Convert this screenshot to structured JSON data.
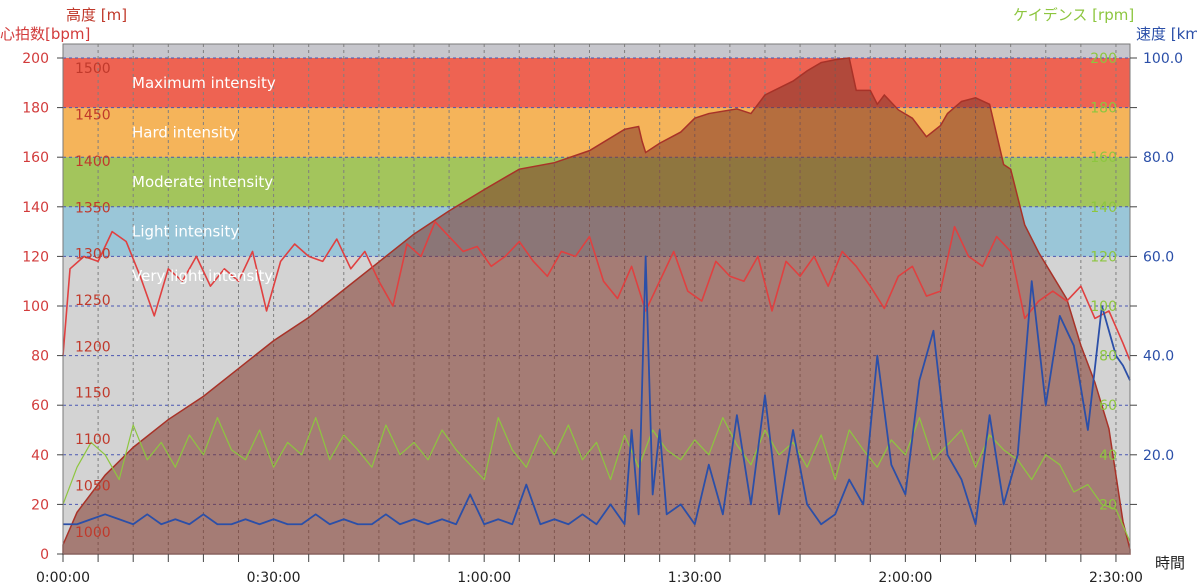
{
  "chart_data": {
    "type": "area",
    "axes": {
      "x": {
        "title": "時間",
        "min": 0,
        "max": 152,
        "unit": "minutes",
        "tick_values": [
          0,
          30,
          60,
          90,
          120,
          150
        ],
        "tick_labels": [
          "0:00:00",
          "0:30:00",
          "1:00:00",
          "1:30:00",
          "2:00:00",
          "2:30:00"
        ],
        "grid": "dotted, every 5 minutes"
      },
      "heart_rate": {
        "title": "心拍数[bpm]",
        "min": 0,
        "max": 200,
        "ticks": [
          0,
          20,
          40,
          60,
          80,
          100,
          120,
          140,
          160,
          180,
          200
        ],
        "color": "#d23b3b"
      },
      "altitude": {
        "title": "高度 [m]",
        "min": 975,
        "max": 1525,
        "ticks": [
          1000,
          1050,
          1100,
          1150,
          1200,
          1250,
          1300,
          1350,
          1400,
          1450,
          1500
        ],
        "color": "#c0392b"
      },
      "cadence": {
        "title": "ケイデンス [rpm]",
        "min": 0,
        "max": 200,
        "ticks": [
          20,
          40,
          60,
          80,
          100,
          120,
          140,
          160,
          180,
          200
        ],
        "color": "#8dc63f"
      },
      "speed": {
        "title": "速度 [km",
        "min": 0,
        "max": 100,
        "ticks": [
          20.0,
          40.0,
          60.0,
          80.0,
          100.0
        ],
        "tick_labels": [
          "20.0",
          "40.0",
          "60.0",
          "80.0",
          "100.0"
        ],
        "color": "#2b4fa8"
      }
    },
    "zones": [
      {
        "label": "Maximum intensity",
        "from": 180,
        "to": 200,
        "color": "#ee6352"
      },
      {
        "label": "Hard intensity",
        "from": 160,
        "to": 180,
        "color": "#f5b45a"
      },
      {
        "label": "Moderate intensity",
        "from": 140,
        "to": 160,
        "color": "#a3c55c"
      },
      {
        "label": "Light intensity",
        "from": 120,
        "to": 140,
        "color": "#9ac6d8"
      },
      {
        "label": "Very light intensity",
        "from": 0,
        "to": 120,
        "color": "#d3d3d3"
      }
    ],
    "series": [
      {
        "key": "altitude",
        "color": "#a83228",
        "fill": "rgba(128,52,40,0.55)",
        "x": [
          0,
          2,
          6,
          10,
          15,
          20,
          25,
          30,
          35,
          40,
          45,
          50,
          55,
          60,
          65,
          70,
          75,
          80,
          82,
          82.5,
          83,
          85,
          88,
          90,
          92,
          96,
          98,
          100,
          104,
          106,
          108,
          110,
          112,
          113,
          115,
          116,
          117,
          119,
          121,
          123,
          125,
          126,
          128,
          130,
          132,
          134,
          135,
          136,
          137,
          139,
          141,
          143,
          145,
          147,
          149,
          150,
          151,
          152
        ],
        "y": [
          985,
          1020,
          1060,
          1090,
          1120,
          1145,
          1175,
          1205,
          1230,
          1260,
          1290,
          1320,
          1345,
          1368,
          1390,
          1397,
          1410,
          1433,
          1436,
          1420,
          1408,
          1418,
          1430,
          1445,
          1450,
          1455,
          1450,
          1470,
          1485,
          1496,
          1505,
          1508,
          1510,
          1475,
          1475,
          1460,
          1470,
          1454,
          1445,
          1425,
          1437,
          1450,
          1463,
          1467,
          1460,
          1395,
          1390,
          1360,
          1330,
          1300,
          1275,
          1250,
          1200,
          1160,
          1110,
          1060,
          1010,
          980
        ]
      },
      {
        "key": "heart_rate",
        "color": "#e04040",
        "x": [
          0,
          1,
          3,
          5,
          7,
          9,
          11,
          13,
          15,
          17,
          19,
          21,
          23,
          25,
          27,
          29,
          31,
          33,
          35,
          37,
          39,
          41,
          43,
          45,
          47,
          49,
          51,
          53,
          55,
          57,
          59,
          61,
          63,
          65,
          67,
          69,
          71,
          73,
          75,
          77,
          79,
          81,
          83,
          85,
          87,
          89,
          91,
          93,
          95,
          97,
          99,
          101,
          103,
          105,
          107,
          109,
          111,
          113,
          115,
          117,
          119,
          121,
          123,
          125,
          127,
          129,
          131,
          133,
          135,
          137,
          139,
          141,
          143,
          145,
          147,
          149,
          151,
          152
        ],
        "y": [
          80,
          115,
          120,
          118,
          130,
          126,
          112,
          96,
          115,
          110,
          120,
          108,
          115,
          110,
          122,
          98,
          118,
          125,
          120,
          118,
          127,
          115,
          122,
          110,
          100,
          125,
          120,
          134,
          128,
          122,
          124,
          116,
          120,
          126,
          118,
          112,
          122,
          120,
          128,
          110,
          103,
          116,
          98,
          110,
          122,
          106,
          102,
          118,
          112,
          110,
          120,
          98,
          118,
          112,
          120,
          108,
          122,
          116,
          108,
          99,
          112,
          116,
          104,
          106,
          132,
          120,
          116,
          128,
          122,
          95,
          102,
          106,
          102,
          108,
          95,
          98,
          85,
          78
        ]
      },
      {
        "key": "cadence",
        "color": "#8dc63f",
        "x": [
          0,
          2,
          4,
          6,
          8,
          10,
          12,
          14,
          16,
          18,
          20,
          22,
          24,
          26,
          28,
          30,
          32,
          34,
          36,
          38,
          40,
          42,
          44,
          46,
          48,
          50,
          52,
          54,
          56,
          58,
          60,
          62,
          64,
          66,
          68,
          70,
          72,
          74,
          76,
          78,
          80,
          82,
          84,
          86,
          88,
          90,
          92,
          94,
          96,
          98,
          100,
          102,
          104,
          106,
          108,
          110,
          112,
          114,
          116,
          118,
          120,
          122,
          124,
          126,
          128,
          130,
          132,
          134,
          136,
          138,
          140,
          142,
          144,
          146,
          148,
          150,
          152
        ],
        "y": [
          20,
          35,
          45,
          40,
          30,
          52,
          38,
          45,
          35,
          48,
          40,
          55,
          42,
          38,
          50,
          35,
          45,
          40,
          55,
          38,
          48,
          42,
          35,
          52,
          40,
          45,
          38,
          50,
          42,
          36,
          30,
          55,
          42,
          35,
          48,
          40,
          52,
          38,
          45,
          30,
          48,
          35,
          50,
          42,
          38,
          46,
          40,
          55,
          44,
          36,
          50,
          40,
          45,
          35,
          48,
          30,
          50,
          42,
          35,
          46,
          40,
          55,
          38,
          44,
          50,
          35,
          48,
          42,
          38,
          30,
          40,
          36,
          25,
          28,
          20,
          18,
          5
        ]
      },
      {
        "key": "speed",
        "color": "#2b4fa8",
        "x": [
          0,
          2,
          4,
          6,
          8,
          10,
          12,
          14,
          16,
          18,
          20,
          22,
          24,
          26,
          28,
          30,
          32,
          34,
          36,
          38,
          40,
          42,
          44,
          46,
          48,
          50,
          52,
          54,
          56,
          58,
          60,
          62,
          64,
          66,
          68,
          70,
          72,
          74,
          76,
          78,
          80,
          81,
          82,
          83,
          84,
          85,
          86,
          88,
          90,
          92,
          94,
          96,
          98,
          100,
          102,
          104,
          106,
          108,
          110,
          112,
          114,
          116,
          118,
          120,
          122,
          124,
          126,
          128,
          130,
          132,
          134,
          136,
          138,
          140,
          142,
          144,
          146,
          148,
          150,
          151,
          152
        ],
        "y": [
          6,
          6,
          7,
          8,
          7,
          6,
          8,
          6,
          7,
          6,
          8,
          6,
          6,
          7,
          6,
          7,
          6,
          6,
          8,
          6,
          7,
          6,
          6,
          8,
          6,
          7,
          6,
          7,
          6,
          12,
          6,
          7,
          6,
          14,
          6,
          7,
          6,
          8,
          6,
          10,
          6,
          25,
          8,
          60,
          12,
          25,
          8,
          10,
          6,
          18,
          8,
          28,
          10,
          32,
          8,
          25,
          10,
          6,
          8,
          15,
          10,
          40,
          18,
          12,
          35,
          45,
          20,
          15,
          6,
          28,
          10,
          20,
          55,
          30,
          48,
          42,
          25,
          50,
          40,
          38,
          35
        ]
      }
    ]
  }
}
